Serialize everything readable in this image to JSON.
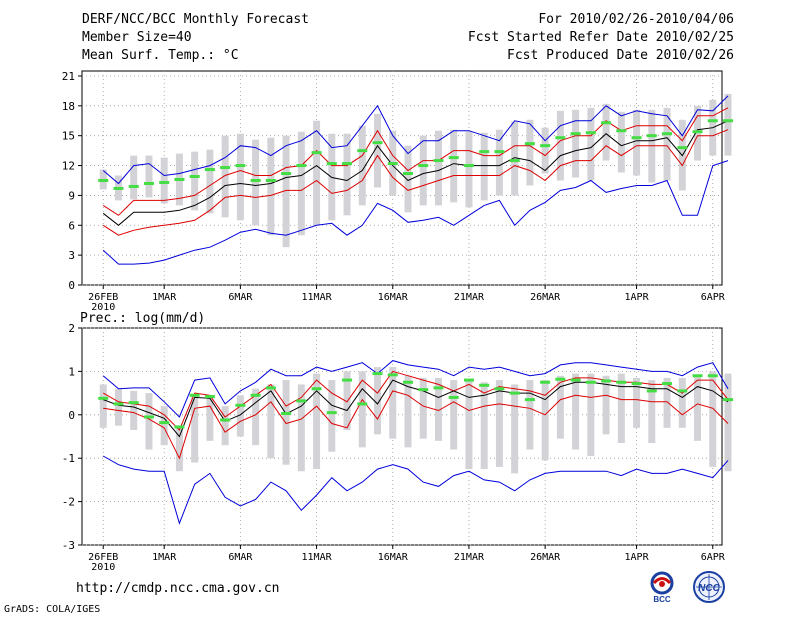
{
  "header": {
    "line1_left": "DERF/NCC/BCC Monthly Forecast",
    "line2_left": "Member Size=40",
    "line3_left": "Mean Surf. Temp.: °C",
    "line1_right": "For 2010/02/26-2010/04/06",
    "line2_right": "Fcst Started Refer Date 2010/02/25",
    "line3_right": "Fcst Produced Date 2010/02/26"
  },
  "footer": {
    "url": "http://cmdp.ncc.cma.gov.cn",
    "credit": "GrADS: COLA/IGES",
    "logo_left_text": "BCC",
    "logo_right_text": "NCC"
  },
  "colors": {
    "envelope": "#0000dd",
    "spread": "#dd0000",
    "mean": "#000000",
    "bar": "#d3d3d7",
    "climatology": "#44dd44",
    "dotgrid": "#999999"
  },
  "chart_data": [
    {
      "type": "line",
      "title": "Mean Surf. Temp.: °C",
      "ylabel": "°C",
      "ylim": [
        0,
        21.5
      ],
      "yticks": [
        0,
        3,
        6,
        9,
        12,
        15,
        18,
        21
      ],
      "xlim": [
        0,
        41
      ],
      "xticks": [
        {
          "x": 1,
          "label": "26FEB",
          "sub": "2010"
        },
        {
          "x": 5,
          "label": "1MAR"
        },
        {
          "x": 10,
          "label": "6MAR"
        },
        {
          "x": 15,
          "label": "11MAR"
        },
        {
          "x": 20,
          "label": "16MAR"
        },
        {
          "x": 25,
          "label": "21MAR"
        },
        {
          "x": 30,
          "label": "26MAR"
        },
        {
          "x": 36,
          "label": "1APR"
        },
        {
          "x": 41,
          "label": "6APR"
        }
      ],
      "series": [
        {
          "name": "max",
          "role": "envelope",
          "values": [
            11.5,
            10.2,
            12.0,
            12.2,
            11.0,
            11.2,
            11.6,
            12.0,
            12.8,
            14.0,
            13.8,
            13.0,
            14.0,
            14.5,
            15.5,
            13.8,
            14.0,
            16.0,
            18.0,
            15.0,
            13.2,
            14.5,
            14.5,
            15.5,
            15.5,
            15.0,
            14.5,
            16.5,
            16.2,
            14.5,
            16.0,
            16.5,
            16.5,
            18.0,
            17.0,
            17.5,
            17.2,
            17.0,
            15.0,
            17.6,
            17.5,
            19.0
          ]
        },
        {
          "name": "upper",
          "role": "spread",
          "values": [
            8.0,
            7.0,
            8.5,
            8.5,
            8.5,
            8.7,
            9.0,
            10.0,
            11.0,
            11.5,
            11.0,
            11.0,
            11.8,
            12.0,
            13.5,
            12.0,
            12.0,
            13.0,
            15.5,
            13.0,
            11.5,
            12.5,
            12.5,
            13.5,
            13.5,
            13.0,
            13.0,
            14.0,
            14.0,
            13.0,
            14.5,
            15.0,
            15.0,
            16.5,
            15.5,
            16.0,
            16.0,
            16.0,
            14.5,
            17.0,
            17.0,
            17.8
          ]
        },
        {
          "name": "mean",
          "role": "mean",
          "values": [
            7.2,
            6.0,
            7.3,
            7.3,
            7.3,
            7.5,
            8.0,
            8.8,
            10.0,
            10.2,
            10.0,
            10.2,
            10.8,
            11.0,
            12.0,
            10.8,
            10.5,
            11.5,
            14.0,
            12.0,
            10.5,
            11.2,
            11.5,
            12.2,
            12.0,
            12.0,
            12.0,
            12.8,
            12.5,
            11.5,
            13.0,
            13.5,
            13.8,
            15.2,
            14.0,
            14.5,
            14.5,
            14.8,
            13.0,
            15.6,
            15.8,
            16.5
          ]
        },
        {
          "name": "lower",
          "role": "spread",
          "values": [
            6.0,
            5.0,
            5.5,
            5.8,
            6.0,
            6.2,
            6.5,
            7.5,
            8.8,
            9.0,
            8.8,
            9.0,
            9.5,
            9.5,
            10.5,
            9.2,
            9.5,
            10.5,
            13.0,
            10.8,
            9.5,
            10.0,
            10.5,
            11.0,
            11.0,
            11.0,
            11.0,
            12.0,
            11.5,
            10.5,
            12.0,
            12.5,
            12.5,
            14.0,
            13.0,
            14.0,
            14.0,
            14.0,
            12.0,
            15.0,
            15.0,
            15.6
          ]
        },
        {
          "name": "min",
          "role": "envelope",
          "values": [
            3.5,
            2.1,
            2.1,
            2.2,
            2.5,
            3.0,
            3.5,
            3.8,
            4.5,
            5.3,
            5.6,
            5.2,
            5.0,
            5.5,
            6.0,
            6.2,
            5.0,
            6.0,
            8.2,
            7.5,
            6.3,
            6.5,
            6.8,
            6.0,
            7.0,
            8.0,
            8.5,
            6.0,
            7.5,
            8.3,
            9.5,
            9.8,
            10.5,
            9.3,
            9.7,
            10.0,
            10.0,
            10.5,
            7.0,
            7.0,
            12.0,
            12.5
          ]
        }
      ],
      "climatology": [
        10.5,
        9.7,
        9.9,
        10.2,
        10.3,
        10.6,
        10.9,
        11.6,
        11.8,
        12.0,
        10.5,
        10.5,
        11.2,
        12.0,
        13.3,
        12.2,
        12.2,
        13.5,
        14.3,
        12.2,
        11.2,
        12.0,
        12.5,
        12.8,
        12.0,
        13.4,
        13.4,
        12.5,
        14.2,
        14.0,
        14.8,
        15.2,
        15.3,
        16.3,
        15.5,
        14.8,
        15.0,
        15.2,
        13.8,
        15.4,
        16.5,
        16.5
      ],
      "bars": [
        [
          9.6,
          11.6
        ],
        [
          8.5,
          11.0
        ],
        [
          8.6,
          13.0
        ],
        [
          8.8,
          13.0
        ],
        [
          8.2,
          12.8
        ],
        [
          8.0,
          13.2
        ],
        [
          7.5,
          13.4
        ],
        [
          7.2,
          13.6
        ],
        [
          6.8,
          15.0
        ],
        [
          6.5,
          15.2
        ],
        [
          6.0,
          14.6
        ],
        [
          5.0,
          14.8
        ],
        [
          3.8,
          15.0
        ],
        [
          5.0,
          15.4
        ],
        [
          6.0,
          16.5
        ],
        [
          6.5,
          15.2
        ],
        [
          7.0,
          15.2
        ],
        [
          8.0,
          16.0
        ],
        [
          9.8,
          17.2
        ],
        [
          9.0,
          15.5
        ],
        [
          7.3,
          14.0
        ],
        [
          8.0,
          15.0
        ],
        [
          8.0,
          15.5
        ],
        [
          8.3,
          15.6
        ],
        [
          7.8,
          15.4
        ],
        [
          8.5,
          15.3
        ],
        [
          9.0,
          15.6
        ],
        [
          9.0,
          16.4
        ],
        [
          10.0,
          16.6
        ],
        [
          11.2,
          15.8
        ],
        [
          10.5,
          17.5
        ],
        [
          10.8,
          17.6
        ],
        [
          10.5,
          17.8
        ],
        [
          12.5,
          18.2
        ],
        [
          11.3,
          17.4
        ],
        [
          11.0,
          17.6
        ],
        [
          10.3,
          17.6
        ],
        [
          10.5,
          17.8
        ],
        [
          9.5,
          16.6
        ],
        [
          12.5,
          18.0
        ],
        [
          13.0,
          18.6
        ],
        [
          13.0,
          19.2
        ]
      ]
    },
    {
      "type": "line",
      "title": "Prec.: log(mm/d)",
      "ylabel": "log(mm/d)",
      "ylim": [
        -3,
        2
      ],
      "yticks": [
        -3,
        -2,
        -1,
        0,
        1,
        2
      ],
      "xlim": [
        0,
        41
      ],
      "xticks": [
        {
          "x": 1,
          "label": "26FEB",
          "sub": "2010"
        },
        {
          "x": 5,
          "label": "1MAR"
        },
        {
          "x": 10,
          "label": "6MAR"
        },
        {
          "x": 15,
          "label": "11MAR"
        },
        {
          "x": 20,
          "label": "16MAR"
        },
        {
          "x": 25,
          "label": "21MAR"
        },
        {
          "x": 30,
          "label": "26MAR"
        },
        {
          "x": 36,
          "label": "1APR"
        },
        {
          "x": 41,
          "label": "6APR"
        }
      ],
      "series": [
        {
          "name": "max",
          "role": "envelope",
          "values": [
            0.9,
            0.6,
            0.62,
            0.62,
            0.3,
            -0.05,
            0.8,
            0.85,
            0.25,
            0.55,
            0.75,
            1.05,
            0.9,
            0.9,
            1.1,
            1.0,
            1.1,
            1.2,
            0.95,
            1.25,
            1.15,
            1.1,
            1.05,
            0.9,
            1.1,
            1.05,
            1.1,
            1.0,
            0.9,
            0.95,
            1.15,
            1.2,
            1.2,
            1.15,
            1.1,
            1.05,
            1.0,
            1.0,
            0.9,
            1.1,
            1.2,
            0.6
          ]
        },
        {
          "name": "upper",
          "role": "spread",
          "values": [
            0.5,
            0.3,
            0.25,
            0.2,
            0.0,
            -0.35,
            0.5,
            0.45,
            -0.05,
            0.2,
            0.45,
            0.7,
            0.2,
            0.4,
            0.8,
            0.5,
            0.3,
            0.8,
            0.5,
            1.0,
            0.9,
            0.8,
            0.7,
            0.55,
            0.7,
            0.5,
            0.65,
            0.6,
            0.55,
            0.45,
            0.75,
            0.85,
            0.85,
            0.8,
            0.75,
            0.75,
            0.7,
            0.7,
            0.5,
            0.8,
            0.8,
            0.35
          ]
        },
        {
          "name": "mean",
          "role": "mean",
          "values": [
            0.35,
            0.22,
            0.18,
            0.05,
            -0.08,
            -0.5,
            0.4,
            0.38,
            -0.15,
            0.0,
            0.28,
            0.55,
            0.02,
            0.2,
            0.55,
            0.22,
            0.1,
            0.6,
            0.25,
            0.8,
            0.65,
            0.55,
            0.4,
            0.55,
            0.4,
            0.45,
            0.55,
            0.5,
            0.5,
            0.35,
            0.65,
            0.75,
            0.75,
            0.7,
            0.65,
            0.65,
            0.6,
            0.6,
            0.4,
            0.65,
            0.55,
            0.3
          ]
        },
        {
          "name": "lower",
          "role": "spread",
          "values": [
            0.15,
            0.1,
            0.05,
            -0.1,
            -0.3,
            -1.0,
            0.15,
            0.2,
            -0.4,
            -0.15,
            0.0,
            0.3,
            -0.2,
            -0.1,
            0.2,
            -0.2,
            -0.3,
            0.35,
            -0.1,
            0.55,
            0.45,
            0.2,
            0.1,
            0.3,
            0.1,
            0.2,
            0.25,
            0.2,
            0.15,
            0.0,
            0.35,
            0.45,
            0.4,
            0.45,
            0.35,
            0.35,
            0.3,
            0.3,
            0.0,
            0.25,
            0.15,
            -0.2
          ]
        },
        {
          "name": "min",
          "role": "envelope",
          "values": [
            -0.95,
            -1.15,
            -1.25,
            -1.3,
            -1.3,
            -2.5,
            -1.6,
            -1.35,
            -1.9,
            -2.1,
            -1.95,
            -1.55,
            -1.75,
            -2.2,
            -1.85,
            -1.45,
            -1.75,
            -1.55,
            -1.25,
            -1.15,
            -1.25,
            -1.55,
            -1.65,
            -1.4,
            -1.3,
            -1.5,
            -1.55,
            -1.75,
            -1.5,
            -1.35,
            -1.3,
            -1.3,
            -1.3,
            -1.3,
            -1.4,
            -1.25,
            -1.35,
            -1.35,
            -1.25,
            -1.35,
            -1.45,
            -1.05
          ]
        }
      ],
      "climatology": [
        0.38,
        0.25,
        0.28,
        -0.05,
        -0.18,
        -0.28,
        0.45,
        0.42,
        -0.12,
        0.22,
        0.45,
        0.62,
        0.03,
        0.32,
        0.6,
        0.05,
        0.8,
        0.25,
        0.95,
        0.92,
        0.75,
        0.58,
        0.62,
        0.4,
        0.8,
        0.68,
        0.6,
        0.5,
        0.35,
        0.75,
        0.82,
        0.8,
        0.75,
        0.78,
        0.75,
        0.72,
        0.55,
        0.72,
        0.55,
        0.9,
        0.9,
        0.35
      ],
      "bars": [
        [
          -0.3,
          0.7
        ],
        [
          -0.25,
          0.6
        ],
        [
          -0.35,
          0.55
        ],
        [
          -0.8,
          0.5
        ],
        [
          -0.7,
          0.2
        ],
        [
          -1.3,
          -0.3
        ],
        [
          -1.1,
          0.45
        ],
        [
          -0.6,
          0.45
        ],
        [
          -0.7,
          0.2
        ],
        [
          -0.5,
          0.45
        ],
        [
          -0.7,
          0.6
        ],
        [
          -1.0,
          0.7
        ],
        [
          -1.15,
          0.8
        ],
        [
          -1.3,
          0.7
        ],
        [
          -1.25,
          0.95
        ],
        [
          -0.85,
          0.8
        ],
        [
          -0.35,
          1.0
        ],
        [
          -0.75,
          1.0
        ],
        [
          -0.45,
          1.1
        ],
        [
          -0.55,
          1.1
        ],
        [
          -0.75,
          0.9
        ],
        [
          -0.55,
          0.85
        ],
        [
          -0.6,
          0.85
        ],
        [
          -0.8,
          0.8
        ],
        [
          -1.25,
          0.8
        ],
        [
          -1.25,
          0.75
        ],
        [
          -1.2,
          0.8
        ],
        [
          -1.35,
          0.7
        ],
        [
          -0.8,
          0.8
        ],
        [
          -1.05,
          0.8
        ],
        [
          -0.55,
          0.9
        ],
        [
          -0.8,
          0.95
        ],
        [
          -0.95,
          0.95
        ],
        [
          -0.45,
          0.9
        ],
        [
          -0.65,
          0.95
        ],
        [
          -0.3,
          0.85
        ],
        [
          -0.65,
          0.8
        ],
        [
          -0.3,
          0.85
        ],
        [
          -0.3,
          0.85
        ],
        [
          -0.6,
          0.9
        ],
        [
          -1.2,
          1.0
        ],
        [
          -1.3,
          0.95
        ]
      ]
    }
  ]
}
